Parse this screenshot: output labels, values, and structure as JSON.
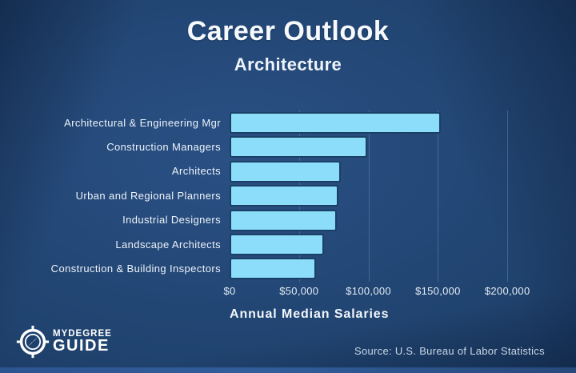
{
  "header": {
    "title": "Career Outlook",
    "subtitle": "Architecture"
  },
  "chart_data": {
    "type": "bar",
    "orientation": "horizontal",
    "title": "Career Outlook",
    "subtitle": "Architecture",
    "categories": [
      "Architectural & Engineering Mgr",
      "Construction Managers",
      "Architects",
      "Urban and Regional Planners",
      "Industrial Designers",
      "Landscape Architects",
      "Construction & Building Inspectors"
    ],
    "values": [
      152000,
      99000,
      80000,
      78500,
      77000,
      68000,
      62000
    ],
    "xlabel": "Annual Median Salaries",
    "ylabel": "",
    "x_ticks": [
      "$0",
      "$50,000",
      "$100,000",
      "$150,000",
      "$200,000"
    ],
    "x_tick_values": [
      0,
      50000,
      100000,
      150000,
      200000
    ],
    "xlim": [
      0,
      215000
    ],
    "grid": true,
    "legend": false,
    "bar_color": "#8bddfa",
    "bar_border_color": "#1b4066",
    "background_color": "#20436f"
  },
  "footer": {
    "source": "Source: U.S. Bureau of Labor Statistics",
    "logo": {
      "line1": "MYDEGREE",
      "line2": "GUIDE"
    }
  }
}
